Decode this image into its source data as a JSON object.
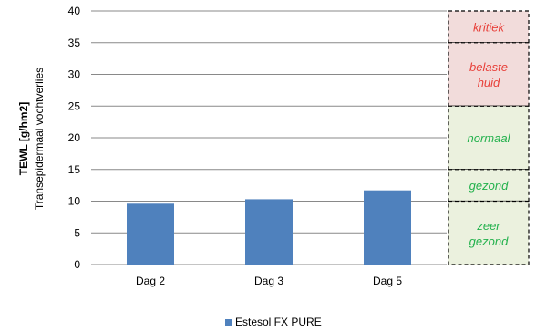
{
  "chart_data": {
    "type": "bar",
    "categories": [
      "Dag 2",
      "Dag 3",
      "Dag 5"
    ],
    "series": [
      {
        "name": "Estesol FX PURE",
        "values": [
          9.6,
          10.3,
          11.7
        ],
        "color": "#4f81bd"
      }
    ],
    "ylabel": "TEWL [g/hm2]",
    "ylabel_sub": "Transepidermaal vochtverlies",
    "ylim": [
      0,
      40
    ],
    "yticks": [
      0,
      5,
      10,
      15,
      20,
      25,
      30,
      35,
      40
    ],
    "grid": true,
    "legend_position": "bottom",
    "zones": [
      {
        "label_lines": [
          "kritiek"
        ],
        "from": 35,
        "to": 40,
        "text_color": "#e8403a",
        "fill": "#f2dcdb"
      },
      {
        "label_lines": [
          "belaste",
          "huid"
        ],
        "from": 25,
        "to": 35,
        "text_color": "#e8403a",
        "fill": "#f2dcdb"
      },
      {
        "label_lines": [
          "normaal"
        ],
        "from": 15,
        "to": 25,
        "text_color": "#22b14c",
        "fill": "#ebf1de"
      },
      {
        "label_lines": [
          "gezond"
        ],
        "from": 10,
        "to": 15,
        "text_color": "#22b14c",
        "fill": "#ebf1de"
      },
      {
        "label_lines": [
          "zeer",
          "gezond"
        ],
        "from": 0,
        "to": 10,
        "text_color": "#22b14c",
        "fill": "#ebf1de"
      }
    ]
  }
}
